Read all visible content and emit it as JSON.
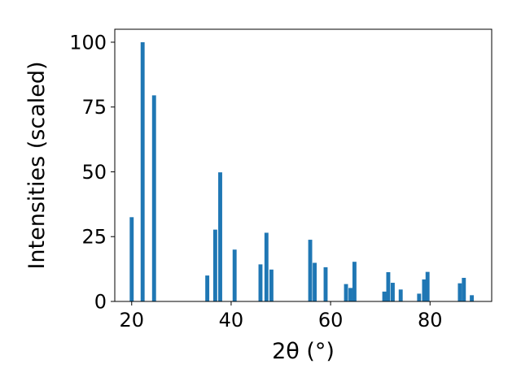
{
  "chart_data": {
    "type": "bar",
    "xlabel": "2θ (°)",
    "ylabel": "Intensities (scaled)",
    "xlim": [
      16.6,
      92.4
    ],
    "ylim": [
      0,
      105
    ],
    "x_ticks": [
      20,
      40,
      60,
      80
    ],
    "y_ticks": [
      0,
      25,
      50,
      75,
      100
    ],
    "grid": false,
    "bar_color": "#1f77b4",
    "bar_width": 0.8,
    "x": [
      20.0,
      22.2,
      24.5,
      35.2,
      36.8,
      37.8,
      40.7,
      45.9,
      47.1,
      48.1,
      55.9,
      56.8,
      59.0,
      63.1,
      64.0,
      64.8,
      70.8,
      71.6,
      72.5,
      74.1,
      77.8,
      78.8,
      79.5,
      86.0,
      86.8,
      88.4
    ],
    "values": [
      32.5,
      100.0,
      79.5,
      10.0,
      27.7,
      49.8,
      20.0,
      14.3,
      26.5,
      12.3,
      23.8,
      14.9,
      13.2,
      6.7,
      5.2,
      15.3,
      3.8,
      11.3,
      7.2,
      4.6,
      3.0,
      8.5,
      11.4,
      7.0,
      9.1,
      2.4
    ]
  }
}
